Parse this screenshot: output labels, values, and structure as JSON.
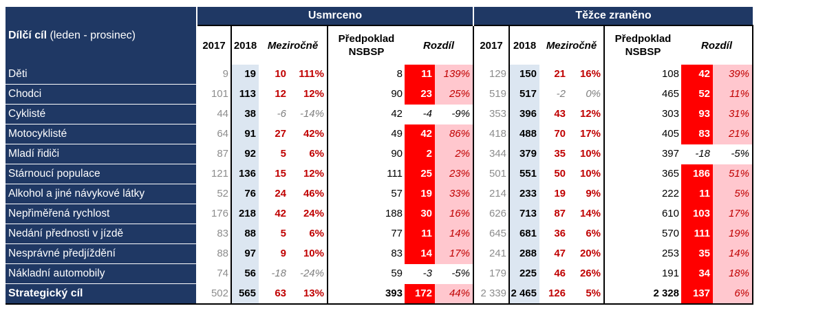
{
  "table": {
    "title_bold": "Dílčí cíl",
    "title_light": " (leden - prosinec)",
    "groups": [
      "Usmrceno",
      "Těžce zraněno"
    ],
    "subheaders": {
      "y2017": "2017",
      "y2018": "2018",
      "yoy": "Meziročně",
      "pred_line1": "Předpoklad",
      "pred_line2": "NSBSP",
      "diff": "Rozdíl"
    },
    "rows": [
      {
        "name": "Děti",
        "k": [
          "9",
          "19",
          "10",
          "111%",
          "8",
          "11",
          "139%"
        ],
        "kn": [
          false,
          false
        ],
        "t": [
          "129",
          "150",
          "21",
          "16%",
          "108",
          "42",
          "39%"
        ],
        "tn": [
          false,
          false
        ]
      },
      {
        "name": "Chodci",
        "k": [
          "101",
          "113",
          "12",
          "12%",
          "90",
          "23",
          "25%"
        ],
        "kn": [
          false,
          false
        ],
        "t": [
          "519",
          "517",
          "-2",
          "0%",
          "465",
          "52",
          "11%"
        ],
        "tn": [
          true,
          false
        ]
      },
      {
        "name": "Cyklisté",
        "k": [
          "44",
          "38",
          "-6",
          "-14%",
          "42",
          "-4",
          "-9%"
        ],
        "kn": [
          true,
          true
        ],
        "t": [
          "353",
          "396",
          "43",
          "12%",
          "303",
          "93",
          "31%"
        ],
        "tn": [
          false,
          false
        ]
      },
      {
        "name": "Motocyklisté",
        "k": [
          "64",
          "91",
          "27",
          "42%",
          "49",
          "42",
          "86%"
        ],
        "kn": [
          false,
          false
        ],
        "t": [
          "418",
          "488",
          "70",
          "17%",
          "405",
          "83",
          "21%"
        ],
        "tn": [
          false,
          false
        ]
      },
      {
        "name": "Mladí řidiči",
        "k": [
          "87",
          "92",
          "5",
          "6%",
          "90",
          "2",
          "2%"
        ],
        "kn": [
          false,
          false
        ],
        "t": [
          "344",
          "379",
          "35",
          "10%",
          "397",
          "-18",
          "-5%"
        ],
        "tn": [
          false,
          true
        ]
      },
      {
        "name": "Stárnoucí populace",
        "k": [
          "121",
          "136",
          "15",
          "12%",
          "111",
          "25",
          "23%"
        ],
        "kn": [
          false,
          false
        ],
        "t": [
          "501",
          "551",
          "50",
          "10%",
          "365",
          "186",
          "51%"
        ],
        "tn": [
          false,
          false
        ]
      },
      {
        "name": "Alkohol a jiné návykové látky",
        "k": [
          "52",
          "76",
          "24",
          "46%",
          "57",
          "19",
          "33%"
        ],
        "kn": [
          false,
          false
        ],
        "t": [
          "214",
          "233",
          "19",
          "9%",
          "222",
          "11",
          "5%"
        ],
        "tn": [
          false,
          false
        ]
      },
      {
        "name": "Nepřiměřená rychlost",
        "k": [
          "176",
          "218",
          "42",
          "24%",
          "188",
          "30",
          "16%"
        ],
        "kn": [
          false,
          false
        ],
        "t": [
          "626",
          "713",
          "87",
          "14%",
          "610",
          "103",
          "17%"
        ],
        "tn": [
          false,
          false
        ]
      },
      {
        "name": "Nedání přednosti v jízdě",
        "k": [
          "83",
          "88",
          "5",
          "6%",
          "77",
          "11",
          "14%"
        ],
        "kn": [
          false,
          false
        ],
        "t": [
          "645",
          "681",
          "36",
          "6%",
          "570",
          "111",
          "19%"
        ],
        "tn": [
          false,
          false
        ]
      },
      {
        "name": "Nesprávné předjíždění",
        "k": [
          "88",
          "97",
          "9",
          "10%",
          "83",
          "14",
          "17%"
        ],
        "kn": [
          false,
          false
        ],
        "t": [
          "241",
          "288",
          "47",
          "20%",
          "253",
          "35",
          "14%"
        ],
        "tn": [
          false,
          false
        ]
      },
      {
        "name": "Nákladní automobily",
        "k": [
          "74",
          "56",
          "-18",
          "-24%",
          "59",
          "-3",
          "-5%"
        ],
        "kn": [
          true,
          true
        ],
        "t": [
          "179",
          "225",
          "46",
          "26%",
          "191",
          "34",
          "18%"
        ],
        "tn": [
          false,
          false
        ]
      },
      {
        "name": "Strategický cíl",
        "k": [
          "502",
          "565",
          "63",
          "13%",
          "393",
          "172",
          "44%"
        ],
        "kn": [
          false,
          false
        ],
        "t": [
          "2 339",
          "2 465",
          "126",
          "5%",
          "2 328",
          "137",
          "6%"
        ],
        "tn": [
          false,
          false
        ],
        "total": true
      }
    ]
  }
}
